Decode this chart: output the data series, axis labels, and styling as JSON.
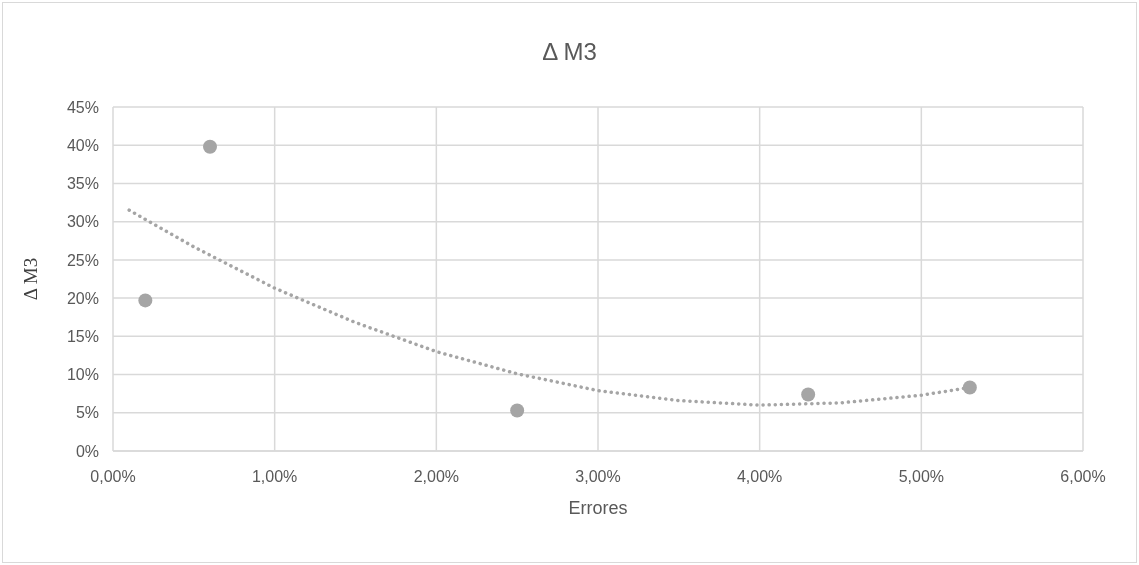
{
  "chart_data": {
    "type": "scatter",
    "title": "Δ M3",
    "xlabel": "Errores",
    "ylabel": "Δ M3",
    "series": [
      {
        "color": "#a5a5a5",
        "marker": "circle",
        "x": [
          0.2,
          0.6,
          2.5,
          4.3,
          5.3
        ],
        "values": [
          19.7,
          39.8,
          5.3,
          7.4,
          8.3
        ]
      },
      {
        "type": "line",
        "color": "#a5a5a5",
        "marker": "none",
        "line_style": "dotted",
        "x": [
          0.1,
          0.5,
          1,
          1.5,
          2,
          2.5,
          3,
          3.5,
          4,
          4.5,
          5,
          5.3
        ],
        "values": [
          31.5,
          26.7,
          21.3,
          16.8,
          13.0,
          10.1,
          7.9,
          6.6,
          6.0,
          6.3,
          7.3,
          8.3
        ]
      }
    ],
    "xlim": [
      0,
      6
    ],
    "xticks": [
      {
        "value": 0,
        "label": "0,00%"
      },
      {
        "value": 1,
        "label": "1,00%"
      },
      {
        "value": 2,
        "label": "2,00%"
      },
      {
        "value": 3,
        "label": "3,00%"
      },
      {
        "value": 4,
        "label": "4,00%"
      },
      {
        "value": 5,
        "label": "5,00%"
      },
      {
        "value": 6,
        "label": "6,00%"
      }
    ],
    "ylim": [
      0,
      45
    ],
    "yticks": [
      {
        "value": 0,
        "label": "0%"
      },
      {
        "value": 5,
        "label": "5%"
      },
      {
        "value": 10,
        "label": "10%"
      },
      {
        "value": 15,
        "label": "15%"
      },
      {
        "value": 20,
        "label": "20%"
      },
      {
        "value": 25,
        "label": "25%"
      },
      {
        "value": 30,
        "label": "30%"
      },
      {
        "value": 35,
        "label": "35%"
      },
      {
        "value": 40,
        "label": "40%"
      },
      {
        "value": 45,
        "label": "45%"
      }
    ],
    "grid": true,
    "legend": false
  }
}
